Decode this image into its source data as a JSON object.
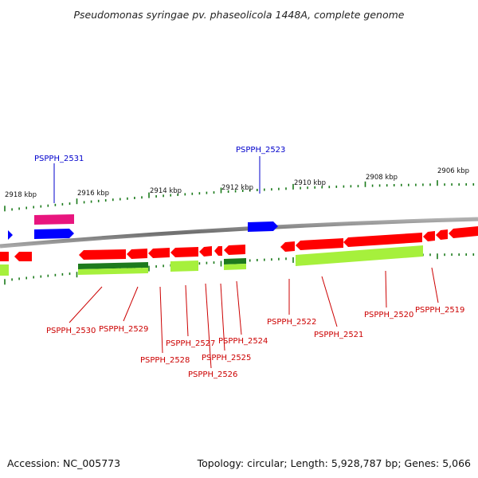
{
  "title": "Pseudomonas syringae pv. phaseolicola 1448A, complete genome",
  "footer": {
    "accession": "Accession: NC_005773",
    "summary": "Topology: circular; Length: 5,928,787 bp; Genes: 5,066"
  },
  "colors": {
    "backbone": "#8a8a8a",
    "forward_cds": "#0000ff",
    "forward_rna": "#e8157e",
    "reverse_cds": "#ff0000",
    "reverse_dark": "#1e7a1e",
    "reverse_light": "#a6f03c",
    "label_forward": "#0000cc",
    "label_reverse": "#cc0000",
    "tick": "#1a7a1a"
  },
  "kbp_labels": [
    "2918 kbp",
    "2916 kbp",
    "2914 kbp",
    "2912 kbp",
    "2910 kbp",
    "2908 kbp",
    "2906 kbp"
  ],
  "gene_labels": {
    "forward": [
      "PSPPH_2531",
      "PSPPH_2523"
    ],
    "reverse": [
      "PSPPH_2530",
      "PSPPH_2529",
      "PSPPH_2528",
      "PSPPH_2527",
      "PSPPH_2526",
      "PSPPH_2525",
      "PSPPH_2524",
      "PSPPH_2522",
      "PSPPH_2521",
      "PSPPH_2520",
      "PSPPH_2519"
    ]
  }
}
